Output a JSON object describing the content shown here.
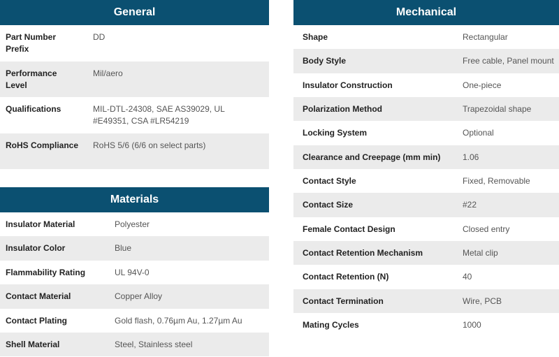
{
  "general": {
    "title": "General",
    "rows": [
      [
        "Part Number Prefix",
        "DD"
      ],
      [
        "Performance Level",
        "Mil/aero"
      ],
      [
        "Qualifications",
        "MIL-DTL-24308, SAE AS39029, UL #E49351, CSA #LR54219"
      ],
      [
        "RoHS Compliance",
        "RoHS 5/6 (6/6 on select parts)"
      ]
    ]
  },
  "materials": {
    "title": "Materials",
    "rows": [
      [
        "Insulator Material",
        "Polyester"
      ],
      [
        "Insulator Color",
        "Blue"
      ],
      [
        "Flammability Rating",
        "UL 94V-0"
      ],
      [
        "Contact Material",
        "Copper Alloy"
      ],
      [
        "Contact Plating",
        "Gold flash, 0.76µm Au, 1.27µm Au"
      ],
      [
        "Shell Material",
        "Steel, Stainless steel"
      ]
    ]
  },
  "mechanical": {
    "title": "Mechanical",
    "rows": [
      [
        "Shape",
        "Rectangular"
      ],
      [
        "Body Style",
        "Free cable, Panel mount"
      ],
      [
        "Insulator Construction",
        "One-piece"
      ],
      [
        "Polarization Method",
        "Trapezoidal shape"
      ],
      [
        "Locking System",
        "Optional"
      ],
      [
        "Clearance and Creepage (mm min)",
        "1.06"
      ],
      [
        "Contact Style",
        "Fixed, Removable"
      ],
      [
        "Contact Size",
        "#22"
      ],
      [
        "Female Contact Design",
        "Closed entry"
      ],
      [
        "Contact Retention Mechanism",
        "Metal clip"
      ],
      [
        "Contact Retention (N)",
        "40"
      ],
      [
        "Contact Termination",
        "Wire, PCB"
      ],
      [
        "Mating Cycles",
        "1000"
      ]
    ]
  }
}
